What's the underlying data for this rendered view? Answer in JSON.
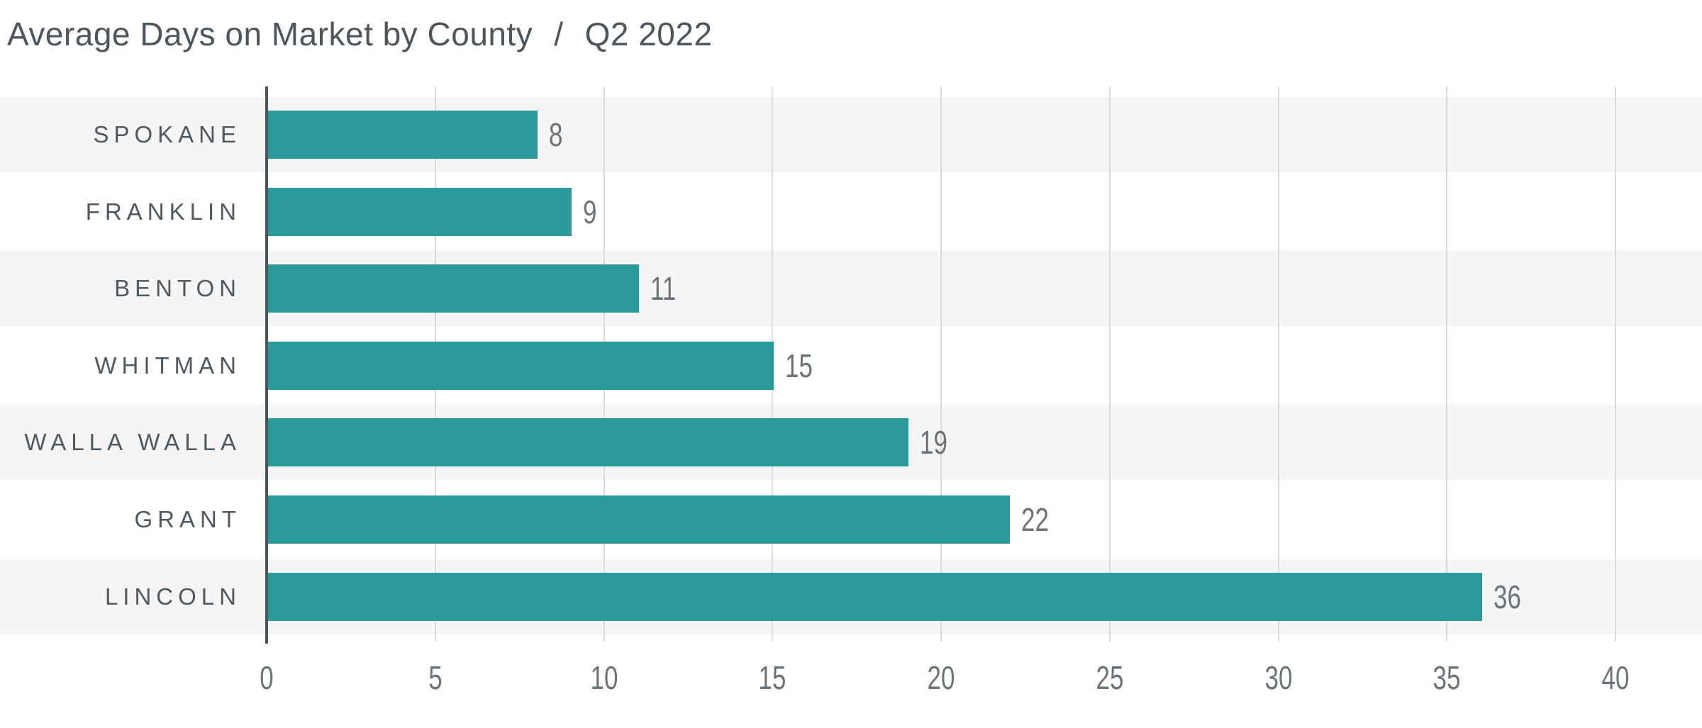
{
  "title": {
    "main": "Average Days on Market by County",
    "separator": "/",
    "period": "Q2 2022"
  },
  "chart_data": {
    "type": "bar",
    "orientation": "horizontal",
    "title": "Average Days on Market by County / Q2 2022",
    "categories": [
      "SPOKANE",
      "FRANKLIN",
      "BENTON",
      "WHITMAN",
      "WALLA WALLA",
      "GRANT",
      "LINCOLN"
    ],
    "values": [
      8,
      9,
      11,
      15,
      19,
      22,
      36
    ],
    "value_labels": [
      "8",
      "9",
      "11",
      "15",
      "19",
      "22",
      "36"
    ],
    "xlabel": "",
    "ylabel": "",
    "xlim": [
      0,
      40
    ],
    "xticks": [
      0,
      5,
      10,
      15,
      20,
      25,
      30,
      35,
      40
    ],
    "grid": true,
    "legend": "none",
    "row_striping": "alternating light gray starting with first row"
  },
  "colors": {
    "bar": "#2a9b9a",
    "title_text": "#4d565c",
    "category_text": "#4f5960",
    "number_text": "#6b7478",
    "stripe": "#f5f5f6",
    "gridline": "#d8dadb",
    "axis_line": "#4b545a",
    "background": "#ffffff"
  }
}
